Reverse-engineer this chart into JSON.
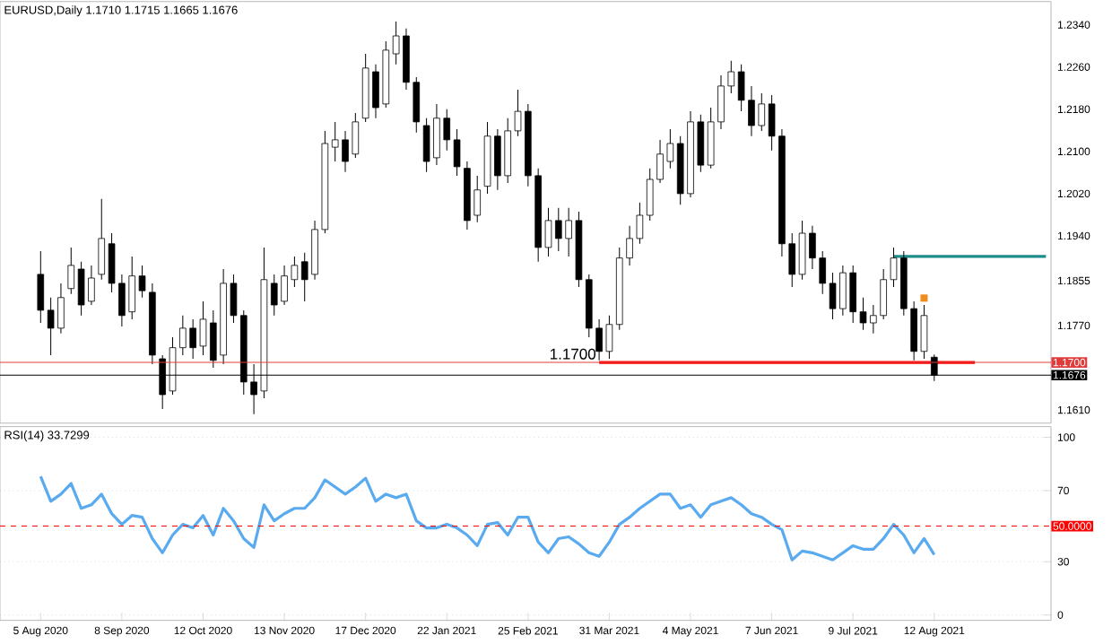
{
  "chart_data": [
    {
      "type": "candlestick",
      "title": "EURUSD,Daily 1.1710 1.1715 1.1665 1.1676",
      "categories": [
        null,
        null,
        null,
        null,
        null,
        null,
        null,
        null,
        null,
        null,
        null,
        null,
        null,
        null,
        null,
        null,
        null,
        null,
        null,
        null,
        null,
        null,
        null,
        null,
        null,
        null,
        null,
        null,
        null,
        null,
        null,
        null,
        null,
        null,
        null,
        null,
        null,
        null,
        null,
        null,
        null,
        null,
        null,
        null,
        null,
        null,
        null,
        null,
        null,
        null,
        null,
        null,
        null,
        null,
        null,
        null,
        null,
        null,
        null,
        null,
        null,
        null,
        null,
        null,
        null,
        null,
        null,
        null,
        null,
        null,
        null,
        null,
        null,
        null,
        null,
        null,
        null,
        null,
        null,
        null,
        null,
        null,
        null,
        null,
        null,
        null,
        null,
        null,
        null,
        null,
        null,
        null,
        null,
        null,
        null,
        null,
        null,
        null,
        null,
        null
      ],
      "color": "#000000",
      "ohlc": [
        [
          1.1867,
          1.1911,
          1.1775,
          1.1799
        ],
        [
          1.1799,
          1.1823,
          1.1714,
          1.1765
        ],
        [
          1.1765,
          1.185,
          1.1755,
          1.1823
        ],
        [
          1.184,
          1.1918,
          1.183,
          1.1884
        ],
        [
          1.1877,
          1.1891,
          1.1789,
          1.1809
        ],
        [
          1.1816,
          1.1884,
          1.1809,
          1.186
        ],
        [
          1.1867,
          1.201,
          1.1857,
          1.1935
        ],
        [
          1.1925,
          1.1945,
          1.1833,
          1.185
        ],
        [
          1.185,
          1.1867,
          1.1768,
          1.1789
        ],
        [
          1.1796,
          1.1901,
          1.1782,
          1.1864
        ],
        [
          1.1864,
          1.1884,
          1.1823,
          1.1836
        ],
        [
          1.1833,
          1.185,
          1.1697,
          1.1714
        ],
        [
          1.1707,
          1.1714,
          1.1612,
          1.1639
        ],
        [
          1.1646,
          1.1748,
          1.1639,
          1.1728
        ],
        [
          1.1728,
          1.1789,
          1.1714,
          1.1765
        ],
        [
          1.1765,
          1.1782,
          1.1707,
          1.1728
        ],
        [
          1.1731,
          1.1816,
          1.1714,
          1.1782
        ],
        [
          1.1775,
          1.1799,
          1.169,
          1.1704
        ],
        [
          1.1714,
          1.1877,
          1.1697,
          1.185
        ],
        [
          1.185,
          1.1867,
          1.1775,
          1.1789
        ],
        [
          1.1789,
          1.1799,
          1.1639,
          1.1663
        ],
        [
          1.1663,
          1.1697,
          1.1602,
          1.1639
        ],
        [
          1.1646,
          1.1918,
          1.1632,
          1.1857
        ],
        [
          1.185,
          1.1867,
          1.1789,
          1.1809
        ],
        [
          1.1816,
          1.1884,
          1.1809,
          1.1864
        ],
        [
          1.1857,
          1.1901,
          1.1843,
          1.1884
        ],
        [
          1.1891,
          1.1908,
          1.1816,
          1.1857
        ],
        [
          1.1867,
          1.1969,
          1.1857,
          1.1952
        ],
        [
          1.1952,
          1.2139,
          1.1945,
          1.2115
        ],
        [
          1.2108,
          1.2156,
          1.2081,
          1.2122
        ],
        [
          1.2122,
          1.2139,
          1.2061,
          1.2081
        ],
        [
          1.2095,
          1.2173,
          1.2088,
          1.2156
        ],
        [
          1.2163,
          1.2285,
          1.2156,
          1.2258
        ],
        [
          1.2251,
          1.2265,
          1.2163,
          1.2183
        ],
        [
          1.219,
          1.2309,
          1.2183,
          1.2292
        ],
        [
          1.2285,
          1.2346,
          1.2265,
          1.2319
        ],
        [
          1.2319,
          1.2333,
          1.2217,
          1.2231
        ],
        [
          1.2231,
          1.2241,
          1.2136,
          1.2156
        ],
        [
          1.2149,
          1.2163,
          1.2061,
          1.2081
        ],
        [
          1.2088,
          1.219,
          1.2074,
          1.2163
        ],
        [
          1.2163,
          1.218,
          1.2102,
          1.2122
        ],
        [
          1.2122,
          1.2142,
          1.2054,
          1.2071
        ],
        [
          1.2068,
          1.2081,
          1.1952,
          1.1969
        ],
        [
          1.1979,
          1.2054,
          1.1966,
          1.2027
        ],
        [
          1.2034,
          1.2156,
          1.202,
          1.2129
        ],
        [
          1.2129,
          1.2142,
          1.2027,
          1.2054
        ],
        [
          1.2054,
          1.2163,
          1.204,
          1.2139
        ],
        [
          1.2139,
          1.2217,
          1.2129,
          1.2176
        ],
        [
          1.2176,
          1.219,
          1.2034,
          1.2054
        ],
        [
          1.2054,
          1.2068,
          1.1891,
          1.1918
        ],
        [
          1.1918,
          1.1993,
          1.1901,
          1.1969
        ],
        [
          1.1969,
          1.1993,
          1.1911,
          1.1935
        ],
        [
          1.1935,
          1.1993,
          1.1901,
          1.1969
        ],
        [
          1.1969,
          1.1986,
          1.1843,
          1.1857
        ],
        [
          1.1857,
          1.1867,
          1.1748,
          1.1765
        ],
        [
          1.1765,
          1.1782,
          1.1704,
          1.1721
        ],
        [
          1.1721,
          1.1789,
          1.1707,
          1.1772
        ],
        [
          1.1772,
          1.1918,
          1.1762,
          1.1898
        ],
        [
          1.1898,
          1.1959,
          1.1884,
          1.1935
        ],
        [
          1.1935,
          1.2003,
          1.1925,
          1.1979
        ],
        [
          1.1979,
          1.2068,
          1.1969,
          1.2047
        ],
        [
          1.2047,
          1.2122,
          1.204,
          1.2095
        ],
        [
          1.2081,
          1.2142,
          1.2068,
          1.2115
        ],
        [
          1.2115,
          1.2129,
          1.1999,
          1.202
        ],
        [
          1.202,
          1.2176,
          1.2013,
          1.2156
        ],
        [
          1.2156,
          1.217,
          1.2061,
          1.2074
        ],
        [
          1.2074,
          1.2183,
          1.2068,
          1.2156
        ],
        [
          1.2156,
          1.2244,
          1.2142,
          1.2224
        ],
        [
          1.2224,
          1.2272,
          1.221,
          1.2251
        ],
        [
          1.2251,
          1.2265,
          1.2176,
          1.2197
        ],
        [
          1.2197,
          1.2224,
          1.2129,
          1.2149
        ],
        [
          1.2149,
          1.221,
          1.2139,
          1.219
        ],
        [
          1.219,
          1.2207,
          1.2102,
          1.2129
        ],
        [
          1.2129,
          1.2142,
          1.1901,
          1.1925
        ],
        [
          1.1925,
          1.1945,
          1.1843,
          1.1867
        ],
        [
          1.1867,
          1.1969,
          1.1857,
          1.1945
        ],
        [
          1.1945,
          1.1959,
          1.1877,
          1.1898
        ],
        [
          1.1898,
          1.1911,
          1.183,
          1.185
        ],
        [
          1.185,
          1.187,
          1.1782,
          1.1802
        ],
        [
          1.1802,
          1.1884,
          1.1789,
          1.187
        ],
        [
          1.187,
          1.1884,
          1.1775,
          1.1796
        ],
        [
          1.1796,
          1.1823,
          1.1762,
          1.1775
        ],
        [
          1.1775,
          1.1809,
          1.1755,
          1.1789
        ],
        [
          1.1789,
          1.1877,
          1.1782,
          1.1857
        ],
        [
          1.1857,
          1.1918,
          1.1843,
          1.1898
        ],
        [
          1.1898,
          1.1911,
          1.1789,
          1.1802
        ],
        [
          1.1802,
          1.1816,
          1.1704,
          1.1721
        ],
        [
          1.1721,
          1.1809,
          1.1707,
          1.1789
        ],
        [
          1.171,
          1.1715,
          1.1665,
          1.1676
        ],
        null,
        null,
        null,
        null,
        null,
        null,
        null,
        null,
        null,
        null,
        null
      ],
      "series": [
        {
          "type": "line",
          "color": "#1f8c8c",
          "values": [
            null,
            null,
            null,
            null,
            null,
            null,
            null,
            null,
            null,
            null,
            null,
            null,
            null,
            null,
            null,
            null,
            null,
            null,
            null,
            null,
            null,
            null,
            null,
            null,
            null,
            null,
            null,
            null,
            null,
            null,
            null,
            null,
            null,
            null,
            null,
            null,
            null,
            null,
            null,
            null,
            null,
            null,
            null,
            null,
            null,
            null,
            null,
            null,
            null,
            null,
            null,
            null,
            null,
            null,
            null,
            null,
            null,
            null,
            null,
            null,
            null,
            null,
            null,
            null,
            null,
            null,
            null,
            null,
            null,
            null,
            null,
            null,
            null,
            null,
            null,
            null,
            null,
            null,
            null,
            null,
            null,
            null,
            null,
            null,
            1.1901,
            1.1901,
            1.1901,
            1.1901,
            1.1901,
            1.1901,
            1.1901,
            1.1901,
            1.1901,
            1.1901,
            1.1901,
            1.1901,
            1.1901,
            1.1901,
            1.1901,
            1.1901
          ]
        },
        {
          "type": "line",
          "color": "#ff0000",
          "values": [
            null,
            null,
            null,
            null,
            null,
            null,
            null,
            null,
            null,
            null,
            null,
            null,
            null,
            null,
            null,
            null,
            null,
            null,
            null,
            null,
            null,
            null,
            null,
            null,
            null,
            null,
            null,
            null,
            null,
            null,
            null,
            null,
            null,
            null,
            null,
            null,
            null,
            null,
            null,
            null,
            null,
            null,
            null,
            null,
            null,
            null,
            null,
            null,
            null,
            null,
            null,
            null,
            null,
            null,
            null,
            1.17,
            1.17,
            1.17,
            1.17,
            1.17,
            1.17,
            1.17,
            1.17,
            1.17,
            1.17,
            1.17,
            1.17,
            1.17,
            1.17,
            1.17,
            1.17,
            1.17,
            1.17,
            1.17,
            1.17,
            1.17,
            1.17,
            1.17,
            1.17,
            1.17,
            1.17,
            1.17,
            1.17,
            1.17,
            1.17,
            1.17,
            1.17,
            1.17,
            1.17,
            1.17,
            1.17,
            1.17,
            1.17,
            null,
            null,
            null,
            null,
            null,
            null,
            null
          ]
        },
        {
          "type": "scatter",
          "color": "#f08c1e",
          "marker": "square",
          "values": [
            null,
            null,
            null,
            null,
            null,
            null,
            null,
            null,
            null,
            null,
            null,
            null,
            null,
            null,
            null,
            null,
            null,
            null,
            null,
            null,
            null,
            null,
            null,
            null,
            null,
            null,
            null,
            null,
            null,
            null,
            null,
            null,
            null,
            null,
            null,
            null,
            null,
            null,
            null,
            null,
            null,
            null,
            null,
            null,
            null,
            null,
            null,
            null,
            null,
            null,
            null,
            null,
            null,
            null,
            null,
            null,
            null,
            null,
            null,
            null,
            null,
            null,
            null,
            null,
            null,
            null,
            null,
            null,
            null,
            null,
            null,
            null,
            null,
            null,
            null,
            null,
            null,
            null,
            null,
            null,
            null,
            null,
            null,
            null,
            null,
            null,
            null,
            1.1822,
            null,
            null,
            null,
            null,
            null,
            null,
            null,
            null,
            null,
            null,
            null,
            null
          ]
        }
      ],
      "ylim": [
        1.1585,
        1.2384
      ],
      "yticks": [
        {
          "value": 1.161,
          "label": "1.1610"
        },
        {
          "value": 1.177,
          "label": "1.1770"
        },
        {
          "value": 1.1855,
          "label": "1.1855"
        },
        {
          "value": 1.194,
          "label": "1.1940"
        },
        {
          "value": 1.202,
          "label": "1.2020"
        },
        {
          "value": 1.21,
          "label": "1.2100"
        },
        {
          "value": 1.218,
          "label": "1.2180"
        },
        {
          "value": 1.226,
          "label": "1.2260"
        },
        {
          "value": 1.234,
          "label": "1.2340"
        }
      ],
      "ref_lines": [
        {
          "axis": "y",
          "value": 1.17,
          "label": "1.1700",
          "color": "#e03c3c"
        },
        {
          "axis": "y",
          "value": 1.1676,
          "label": "1.1676",
          "color": "#000000"
        }
      ],
      "annotations": [
        "1.1700"
      ],
      "tick_labels": "y"
    },
    {
      "type": "line",
      "title": "RSI(14) 33.7299",
      "categories": [
        "5 Aug 2020",
        null,
        null,
        null,
        null,
        null,
        null,
        null,
        "8 Sep 2020",
        null,
        null,
        null,
        null,
        null,
        null,
        null,
        "12 Oct 2020",
        null,
        null,
        null,
        null,
        null,
        null,
        null,
        "13 Nov 2020",
        null,
        null,
        null,
        null,
        null,
        null,
        null,
        "17 Dec 2020",
        null,
        null,
        null,
        null,
        null,
        null,
        null,
        "22 Jan 2021",
        null,
        null,
        null,
        null,
        null,
        null,
        null,
        "25 Feb 2021",
        null,
        null,
        null,
        null,
        null,
        null,
        null,
        "31 Mar 2021",
        null,
        null,
        null,
        null,
        null,
        null,
        null,
        "4 May 2021",
        null,
        null,
        null,
        null,
        null,
        null,
        null,
        "7 Jun 2021",
        null,
        null,
        null,
        null,
        null,
        null,
        null,
        "9 Jul 2021",
        null,
        null,
        null,
        null,
        null,
        null,
        null,
        "12 Aug 2021",
        null,
        null,
        null,
        null,
        null,
        null,
        null,
        null,
        null,
        null,
        null
      ],
      "series": [
        {
          "color": "#5aaaf0",
          "values": [
            78,
            64,
            68,
            74,
            60,
            62,
            68,
            57,
            51,
            56,
            55,
            43,
            35,
            45,
            51,
            49,
            56,
            45,
            60,
            53,
            43,
            38,
            62,
            53,
            57,
            60,
            60,
            66,
            76,
            72,
            68,
            72,
            77,
            64,
            68,
            66,
            68,
            53,
            49,
            49,
            51,
            49,
            45,
            39,
            51,
            52,
            45,
            55,
            55,
            41,
            35,
            43,
            44,
            40,
            35,
            33,
            41,
            51,
            55,
            60,
            64,
            68,
            68,
            60,
            62,
            55,
            62,
            64,
            66,
            62,
            57,
            55,
            51,
            48,
            31,
            36,
            35,
            33,
            31,
            35,
            39,
            37,
            37,
            43,
            51,
            45,
            35,
            43,
            34,
            null,
            null,
            null,
            null,
            null,
            null,
            null,
            null,
            null,
            null,
            null
          ]
        }
      ],
      "ylim": [
        -3,
        106
      ],
      "yticks": [
        0,
        30,
        70,
        100
      ],
      "grid": "y",
      "ref_lines": [
        {
          "axis": "y",
          "value": 50,
          "label": "50.0000",
          "color": "#ff0000",
          "line_style": "dashed"
        }
      ]
    }
  ]
}
